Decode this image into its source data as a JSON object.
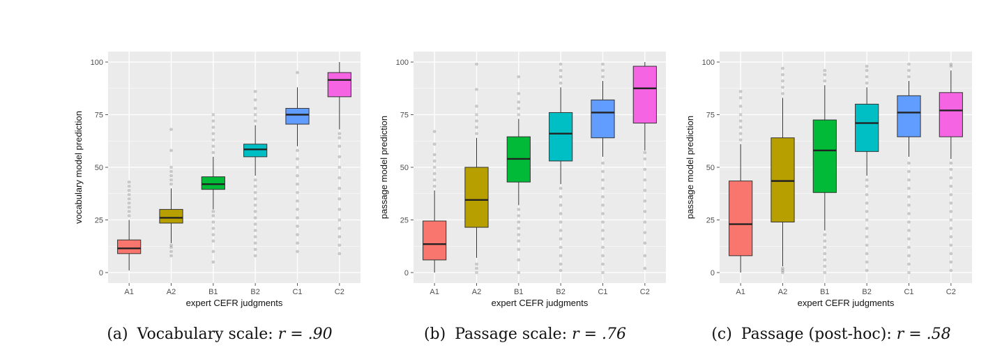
{
  "figure": {
    "captions": [
      {
        "label": "(a)",
        "text": "Vocabulary scale:",
        "stat": "r = .90"
      },
      {
        "label": "(b)",
        "text": "Passage scale:",
        "stat": "r = .76"
      },
      {
        "label": "(c)",
        "text": "Passage (post-hoc):",
        "stat": "r = .58"
      }
    ]
  },
  "colors": {
    "panel_bg": "#ebebeb",
    "grid": "#ffffff",
    "A1": "#f8766d",
    "A2": "#b79f00",
    "B1": "#00ba38",
    "B2": "#00bfc4",
    "C1": "#619cff",
    "C2": "#f564e3"
  },
  "chart_data": [
    {
      "type": "box",
      "title": "",
      "xlabel": "expert CEFR judgments",
      "ylabel": "vocabulary model prediction",
      "ylim": [
        0,
        100
      ],
      "yticks": [
        0,
        25,
        50,
        75,
        100
      ],
      "grid": true,
      "categories": [
        "A1",
        "A2",
        "B1",
        "B2",
        "C1",
        "C2"
      ],
      "boxes": [
        {
          "min": 1,
          "q1": 9,
          "median": 11.5,
          "q3": 15.5,
          "max": 25,
          "outliers": [
            27,
            29,
            31,
            33,
            35,
            37,
            39,
            41,
            43
          ]
        },
        {
          "min": 14,
          "q1": 23.5,
          "median": 26,
          "q3": 30,
          "max": 40,
          "outliers": [
            8,
            10,
            12,
            13,
            42,
            44,
            46,
            48,
            50,
            58,
            68
          ]
        },
        {
          "min": 30,
          "q1": 39.5,
          "median": 42,
          "q3": 45.5,
          "max": 55,
          "outliers": [
            5,
            10,
            15,
            18,
            21,
            24,
            27,
            29,
            57,
            60,
            63,
            66,
            69,
            72,
            75
          ]
        },
        {
          "min": 46,
          "q1": 55,
          "median": 58.5,
          "q3": 61,
          "max": 70,
          "outliers": [
            8,
            11,
            14,
            17,
            20,
            23,
            26,
            29,
            32,
            35,
            38,
            41,
            44,
            72,
            75,
            78,
            82,
            86
          ]
        },
        {
          "min": 60,
          "q1": 70.5,
          "median": 75,
          "q3": 78,
          "max": 88,
          "outliers": [
            10,
            14,
            18,
            22,
            26,
            30,
            34,
            38,
            42,
            46,
            50,
            54,
            58,
            95
          ]
        },
        {
          "min": 68,
          "q1": 83.5,
          "median": 91.5,
          "q3": 95,
          "max": 100,
          "outliers": [
            9,
            13,
            17,
            21,
            25,
            30,
            35,
            40,
            45,
            50,
            55,
            60,
            64,
            66
          ]
        }
      ]
    },
    {
      "type": "box",
      "title": "",
      "xlabel": "expert CEFR judgments",
      "ylabel": "passage model prediction",
      "ylim": [
        0,
        100
      ],
      "yticks": [
        0,
        25,
        50,
        75,
        100
      ],
      "grid": true,
      "categories": [
        "A1",
        "A2",
        "B1",
        "B2",
        "C1",
        "C2"
      ],
      "boxes": [
        {
          "min": 0,
          "q1": 6,
          "median": 13.5,
          "q3": 24.5,
          "max": 39,
          "outliers": [
            41,
            44,
            47,
            50,
            53,
            56,
            61,
            67
          ]
        },
        {
          "min": 7,
          "q1": 21.5,
          "median": 34.5,
          "q3": 50,
          "max": 64,
          "outliers": [
            0,
            2,
            4,
            66,
            69,
            72,
            75,
            79,
            87,
            99
          ]
        },
        {
          "min": 32,
          "q1": 43,
          "median": 54,
          "q3": 64.5,
          "max": 73,
          "outliers": [
            0,
            6,
            11,
            15,
            18,
            21,
            24,
            27,
            30,
            75,
            78,
            81,
            85,
            93
          ]
        },
        {
          "min": 42,
          "q1": 53,
          "median": 66,
          "q3": 76,
          "max": 88,
          "outliers": [
            1,
            4,
            8,
            12,
            16,
            20,
            24,
            28,
            32,
            36,
            40,
            90,
            93,
            96,
            99
          ]
        },
        {
          "min": 55,
          "q1": 64,
          "median": 76,
          "q3": 82,
          "max": 91,
          "outliers": [
            0,
            4,
            8,
            12,
            16,
            20,
            24,
            28,
            32,
            36,
            40,
            44,
            48,
            52,
            93,
            96,
            99
          ]
        },
        {
          "min": 58,
          "q1": 71,
          "median": 87.5,
          "q3": 98,
          "max": 100,
          "outliers": [
            2,
            8,
            14,
            19,
            24,
            29,
            34,
            39,
            44,
            49,
            54,
            57
          ]
        }
      ]
    },
    {
      "type": "box",
      "title": "",
      "xlabel": "expert CEFR judgments",
      "ylabel": "passage model prediction",
      "ylim": [
        0,
        100
      ],
      "yticks": [
        0,
        25,
        50,
        75,
        100
      ],
      "grid": true,
      "categories": [
        "A1",
        "A2",
        "B1",
        "B2",
        "C1",
        "C2"
      ],
      "boxes": [
        {
          "min": 0,
          "q1": 8,
          "median": 23,
          "q3": 43.5,
          "max": 61,
          "outliers": [
            63,
            66,
            69,
            72,
            75,
            79,
            83,
            86
          ]
        },
        {
          "min": 3,
          "q1": 24,
          "median": 43.5,
          "q3": 64,
          "max": 83,
          "outliers": [
            0,
            1,
            2,
            85,
            88,
            91,
            94,
            97
          ]
        },
        {
          "min": 20,
          "q1": 38,
          "median": 58,
          "q3": 72.5,
          "max": 89,
          "outliers": [
            0,
            3,
            6,
            9,
            12,
            15,
            18,
            91,
            94,
            96
          ]
        },
        {
          "min": 46,
          "q1": 57.5,
          "median": 71,
          "q3": 80,
          "max": 88,
          "outliers": [
            1,
            5,
            9,
            13,
            17,
            21,
            25,
            29,
            33,
            37,
            41,
            44,
            90,
            93,
            96,
            98
          ]
        },
        {
          "min": 55,
          "q1": 64.5,
          "median": 76,
          "q3": 84,
          "max": 91,
          "outliers": [
            0,
            4,
            8,
            12,
            16,
            20,
            24,
            28,
            32,
            36,
            40,
            44,
            48,
            52,
            93,
            96,
            99
          ]
        },
        {
          "min": 54,
          "q1": 64.5,
          "median": 77,
          "q3": 85.5,
          "max": 96,
          "outliers": [
            1,
            5,
            9,
            13,
            17,
            21,
            25,
            29,
            33,
            37,
            41,
            45,
            49,
            52,
            98,
            99
          ]
        }
      ]
    }
  ]
}
